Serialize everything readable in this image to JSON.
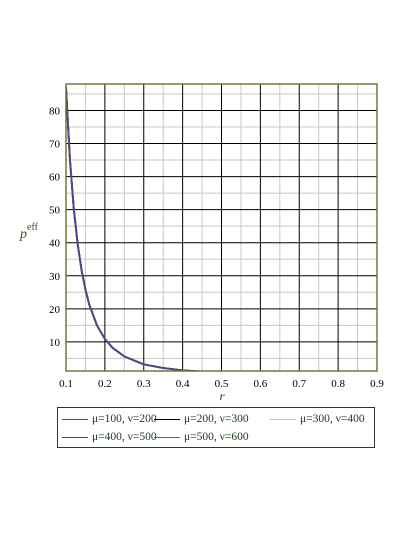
{
  "chart_data": {
    "type": "line",
    "xlabel": "r",
    "ylabel": "p",
    "ylabel_superscript": "eff",
    "xlim": [
      0.1,
      0.9
    ],
    "ylim": [
      1.2,
      88
    ],
    "x_ticks": [
      0.1,
      0.2,
      0.3,
      0.4,
      0.5,
      0.6,
      0.7,
      0.8,
      0.9
    ],
    "y_ticks": [
      10,
      20,
      30,
      40,
      50,
      60,
      70,
      80
    ],
    "grid": true,
    "legend_position": "bottom",
    "x": [
      0.1,
      0.11,
      0.12,
      0.13,
      0.14,
      0.15,
      0.16,
      0.18,
      0.2,
      0.22,
      0.25,
      0.3,
      0.35,
      0.4,
      0.45,
      0.5,
      0.55,
      0.6,
      0.65,
      0.7,
      0.75,
      0.8,
      0.85,
      0.9
    ],
    "series": [
      {
        "name": "μ=100, ν=200",
        "color": "#e8141e",
        "values": [
          87.0,
          65.4,
          50.3,
          39.6,
          31.7,
          25.8,
          21.2,
          14.9,
          10.9,
          8.2,
          5.6,
          3.2,
          2.1,
          1.4,
          1.0,
          0.75,
          0.57,
          0.44,
          0.35,
          0.28,
          0.23,
          0.19,
          0.16,
          0.13
        ]
      },
      {
        "name": "μ=200, ν=300",
        "color": "#000000",
        "values": [
          87.0,
          65.4,
          50.3,
          39.6,
          31.7,
          25.8,
          21.2,
          14.9,
          10.9,
          8.2,
          5.6,
          3.2,
          2.1,
          1.4,
          1.0,
          0.75,
          0.57,
          0.44,
          0.35,
          0.28,
          0.23,
          0.19,
          0.16,
          0.13
        ]
      },
      {
        "name": "μ=300, ν=400",
        "color": "#e8d21a",
        "values": [
          87.0,
          65.4,
          50.3,
          39.6,
          31.7,
          25.8,
          21.2,
          14.9,
          10.9,
          8.2,
          5.6,
          3.2,
          2.1,
          1.4,
          1.0,
          0.75,
          0.57,
          0.44,
          0.35,
          0.28,
          0.23,
          0.19,
          0.16,
          0.13
        ]
      },
      {
        "name": "μ=400, ν=500",
        "color": "#8b1a8b",
        "values": [
          87.0,
          65.4,
          50.3,
          39.6,
          31.7,
          25.8,
          21.2,
          14.9,
          10.9,
          8.2,
          5.6,
          3.2,
          2.1,
          1.4,
          1.0,
          0.75,
          0.57,
          0.44,
          0.35,
          0.28,
          0.23,
          0.19,
          0.16,
          0.13
        ]
      },
      {
        "name": "μ=500, ν=600",
        "color": "#3d6b8c",
        "values": [
          87.0,
          65.4,
          50.3,
          39.6,
          31.7,
          25.8,
          21.2,
          14.9,
          10.9,
          8.2,
          5.6,
          3.2,
          2.1,
          1.4,
          1.0,
          0.75,
          0.57,
          0.44,
          0.35,
          0.28,
          0.23,
          0.19,
          0.16,
          0.13
        ]
      }
    ],
    "colors": {
      "plot_border": "#6b6b2a",
      "minor_grid": "#c8c8c8",
      "major_grid": "#000000",
      "visible_curve": "#4a4a8a"
    }
  }
}
